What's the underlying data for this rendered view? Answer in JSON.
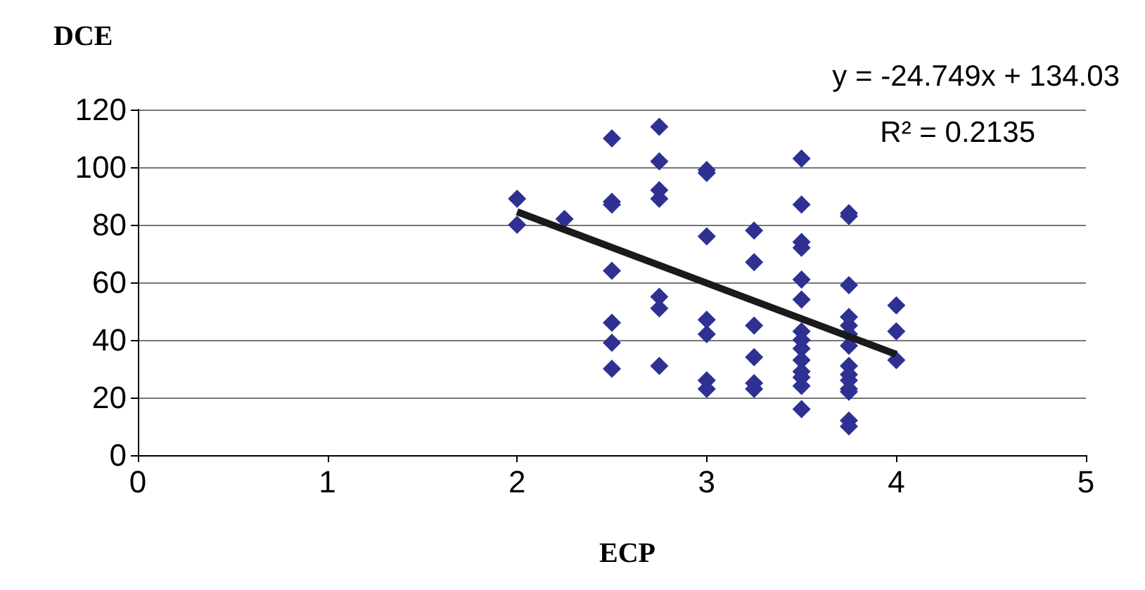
{
  "chart_data": {
    "type": "scatter",
    "xlabel": "ECP",
    "ylabel": "DCE",
    "annotations": [
      "y = -24.749x + 134.03",
      "R² = 0.2135"
    ],
    "series": [
      {
        "color": "#2e3192",
        "marker": "diamond",
        "x": [
          2,
          2,
          2.25,
          2.5,
          2.5,
          2.5,
          2.5,
          2.5,
          2.5,
          2.5,
          2.75,
          2.75,
          2.75,
          2.75,
          2.75,
          2.75,
          2.75,
          3,
          3,
          3,
          3,
          3,
          3,
          3,
          3.25,
          3.25,
          3.25,
          3.25,
          3.25,
          3.25,
          3.5,
          3.5,
          3.5,
          3.5,
          3.5,
          3.5,
          3.5,
          3.5,
          3.5,
          3.5,
          3.5,
          3.5,
          3.5,
          3.5,
          3.75,
          3.75,
          3.75,
          3.75,
          3.75,
          3.75,
          3.75,
          3.75,
          3.75,
          3.75,
          3.75,
          3.75,
          3.75,
          3.75,
          4,
          4,
          4
        ],
        "values": [
          89,
          80,
          82,
          110,
          88,
          87,
          64,
          46,
          39,
          30,
          114,
          102,
          92,
          89,
          55,
          51,
          31,
          99,
          98,
          76,
          47,
          42,
          26,
          23,
          78,
          67,
          45,
          34,
          25,
          23,
          103,
          87,
          74,
          72,
          61,
          54,
          43,
          40,
          37,
          33,
          29,
          27,
          24,
          16,
          84,
          83,
          59,
          48,
          45,
          42,
          38,
          31,
          28,
          26,
          23,
          22,
          12,
          10,
          52,
          43,
          33
        ]
      },
      {
        "type": "line",
        "color": "#1a1a1a",
        "marker": "none",
        "x": [
          2,
          4
        ],
        "values": [
          84.5,
          35
        ]
      }
    ],
    "xlim": [
      0,
      5
    ],
    "xticks": [
      0,
      1,
      2,
      3,
      4,
      5
    ],
    "ylim": [
      0,
      120
    ],
    "yticks": [
      0,
      20,
      40,
      60,
      80,
      100,
      120
    ],
    "grid": "y"
  }
}
